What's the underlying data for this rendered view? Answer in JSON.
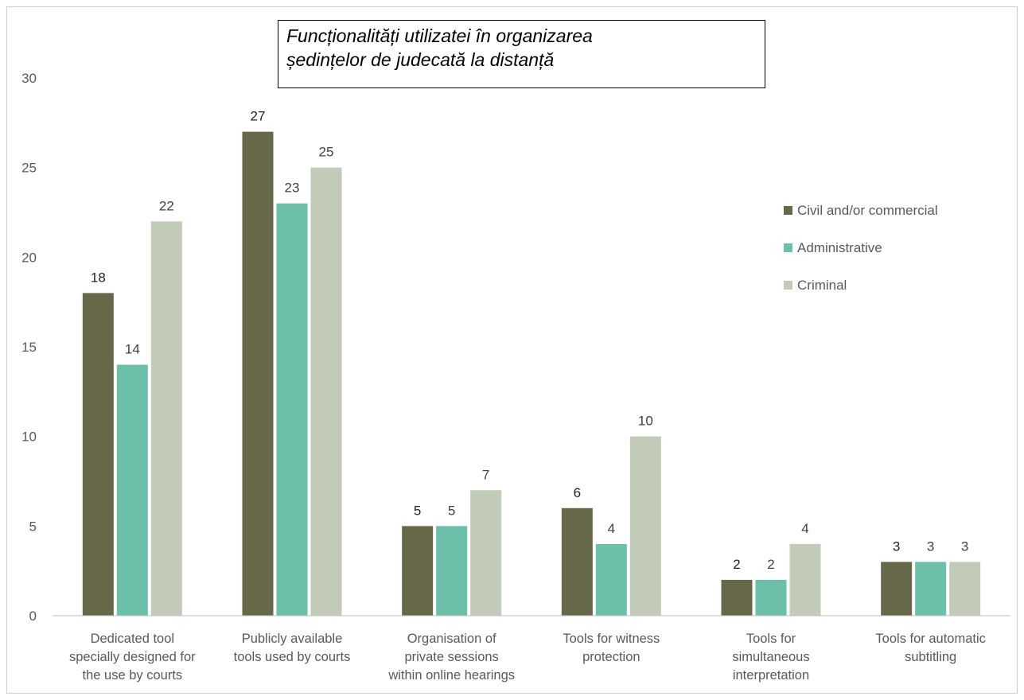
{
  "chart_data": {
    "type": "bar",
    "title_lines": [
      "Funcționalități utilizatei în organizarea",
      "ședințelor de judecată la distanță"
    ],
    "categories": [
      [
        "Dedicated tool",
        "specially designed for",
        "the use by courts"
      ],
      [
        "Publicly available",
        "tools used by courts"
      ],
      [
        "Organisation of",
        "private sessions",
        "within online hearings"
      ],
      [
        "Tools for witness",
        "protection"
      ],
      [
        "Tools for",
        "simultaneous",
        "interpretation"
      ],
      [
        "Tools for automatic",
        "subtitling"
      ]
    ],
    "series": [
      {
        "name": "Civil and/or commercial",
        "color": "#67674a",
        "values": [
          18,
          27,
          5,
          6,
          2,
          3
        ]
      },
      {
        "name": "Administrative",
        "color": "#6cc0aa",
        "values": [
          14,
          23,
          5,
          4,
          2,
          3
        ]
      },
      {
        "name": "Criminal",
        "color": "#c1cbb7",
        "values": [
          22,
          25,
          7,
          10,
          4,
          3
        ]
      }
    ],
    "ylim": [
      0,
      30
    ],
    "yticks": [
      0,
      5,
      10,
      15,
      20,
      25,
      30
    ],
    "grid": false,
    "legend_position": "right",
    "data_labels": true
  }
}
